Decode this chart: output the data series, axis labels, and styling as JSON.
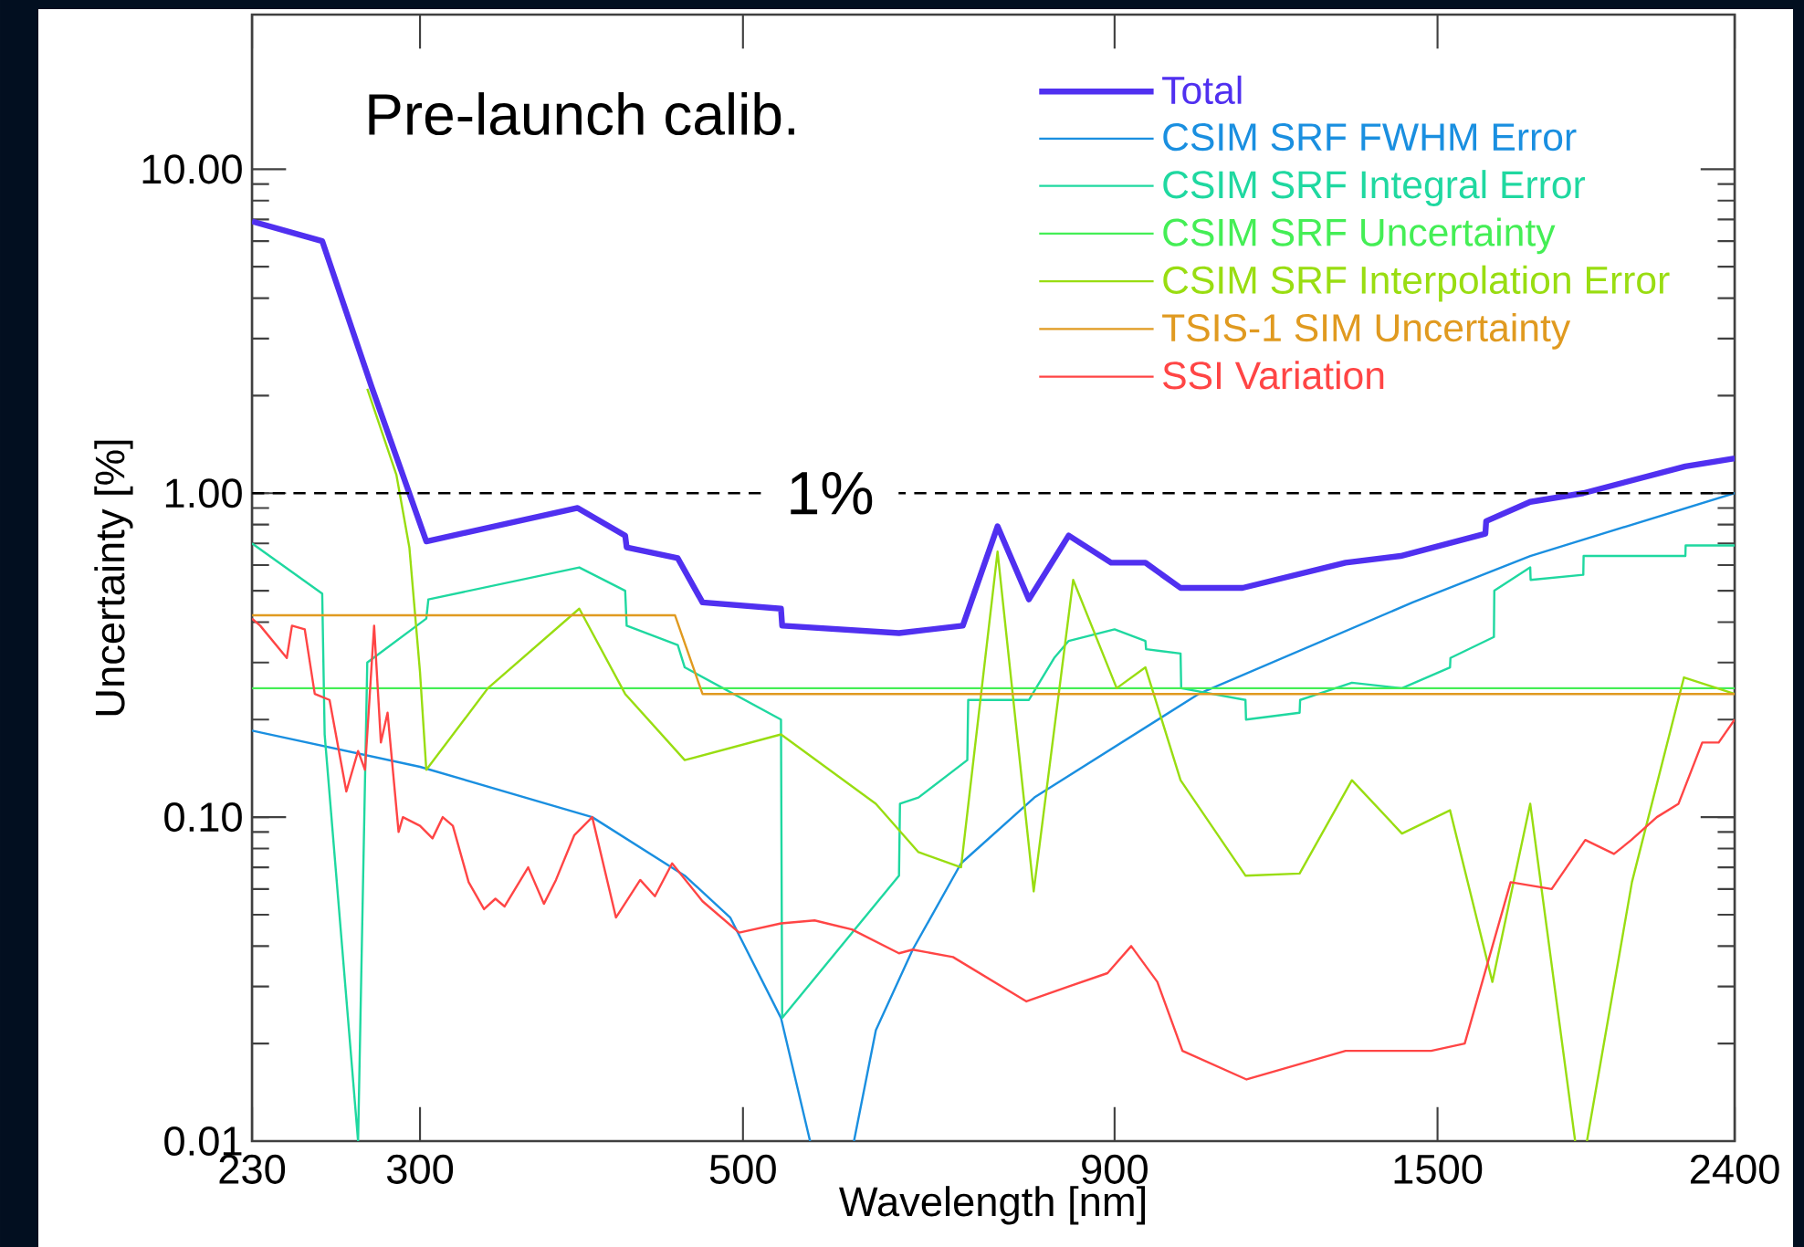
{
  "chart_data": {
    "type": "line",
    "xlabel": "Wavelength [nm]",
    "ylabel": "Uncertainty [%]",
    "annotations": [
      "Pre-launch calib."
    ],
    "log": "xy",
    "grid": false,
    "legend": "top right",
    "marker": "none",
    "xlim": [
      230,
      2400
    ],
    "ylim": [
      0.01,
      30
    ],
    "xticks": [
      230,
      300,
      500,
      900,
      1500,
      2400
    ],
    "yticks": [
      {
        "value": 0.01,
        "label": "0.01"
      },
      {
        "value": 0.1,
        "label": "0.10"
      },
      {
        "value": 1,
        "label": "1.00"
      },
      {
        "value": 10,
        "label": "10.00"
      }
    ],
    "ref_lines": [
      {
        "axis": "y",
        "value": 1,
        "label": "1%",
        "line_style": "dashed",
        "color": "#000000"
      }
    ],
    "series": [
      {
        "name": "Total",
        "color": "#5030f0",
        "x": [
          230,
          257,
          278,
          303,
          385,
          415,
          416,
          451,
          469,
          531,
          532,
          640,
          708,
          748,
          786,
          837,
          895,
          945,
          999,
          1102,
          1297,
          1415,
          1618,
          1620,
          1737,
          1889,
          2220,
          2400
        ],
        "values": [
          6.9,
          6.0,
          2.12,
          0.71,
          0.9,
          0.74,
          0.68,
          0.63,
          0.46,
          0.44,
          0.39,
          0.37,
          0.39,
          0.79,
          0.47,
          0.74,
          0.61,
          0.61,
          0.51,
          0.51,
          0.61,
          0.64,
          0.75,
          0.82,
          0.94,
          1.0,
          1.21,
          1.28
        ]
      },
      {
        "name": "CSIM SRF FWHM Error",
        "color": "#1a8fe0",
        "x": [
          230,
          300,
          394,
          456,
          490,
          531,
          556,
          576,
          596,
          617,
          654,
          706,
          793,
          1028,
          1442,
          1737,
          2400
        ],
        "values": [
          0.185,
          0.143,
          0.1,
          0.066,
          0.049,
          0.024,
          0.01,
          null,
          0.01,
          0.022,
          0.039,
          0.072,
          0.115,
          0.24,
          0.46,
          0.64,
          1.0
        ]
      },
      {
        "name": "CSIM SRF Integral Error",
        "color": "#1fd8a0",
        "x": [
          230,
          257,
          258,
          272,
          276,
          303,
          304,
          386,
          415,
          416,
          451,
          456,
          531,
          532,
          640,
          641,
          660,
          713,
          714,
          786,
          818,
          837,
          900,
          945,
          946,
          999,
          1000,
          1107,
          1108,
          1206,
          1207,
          1310,
          1418,
          1530,
          1531,
          1640,
          1641,
          1737,
          1738,
          1889,
          1890,
          2220,
          2221,
          2400
        ],
        "values": [
          0.7,
          0.49,
          0.18,
          0.01,
          0.3,
          0.41,
          0.47,
          0.59,
          0.5,
          0.39,
          0.34,
          0.29,
          0.2,
          0.024,
          0.066,
          0.11,
          0.115,
          0.15,
          0.23,
          0.23,
          0.31,
          0.35,
          0.38,
          0.35,
          0.33,
          0.32,
          0.25,
          0.23,
          0.2,
          0.21,
          0.23,
          0.26,
          0.25,
          0.29,
          0.31,
          0.36,
          0.5,
          0.59,
          0.54,
          0.56,
          0.64,
          0.64,
          0.69,
          0.69
        ]
      },
      {
        "name": "CSIM SRF Uncertainty",
        "color": "#44ee55",
        "x": [
          230,
          2400
        ],
        "values": [
          0.25,
          0.25
        ]
      },
      {
        "name": "CSIM SRF Interpolation Error",
        "color": "#99dd11",
        "x": [
          276,
          289,
          295,
          300,
          303,
          334,
          386,
          415,
          456,
          531,
          617,
          660,
          706,
          748,
          792,
          843,
          903,
          945,
          999,
          1107,
          1206,
          1310,
          1418,
          1530,
          1636,
          1737,
          1865,
          1882,
          1900,
          2040,
          2215,
          2400
        ],
        "values": [
          2.1,
          1.14,
          0.68,
          0.28,
          0.14,
          0.25,
          0.44,
          0.24,
          0.15,
          0.18,
          0.11,
          0.078,
          0.07,
          0.66,
          0.059,
          0.54,
          0.25,
          0.29,
          0.13,
          0.066,
          0.067,
          0.13,
          0.089,
          0.105,
          0.031,
          0.11,
          0.01,
          null,
          0.01,
          0.063,
          0.27,
          0.24
        ]
      },
      {
        "name": "TSIS-1 SIM Uncertainty",
        "color": "#e09a20",
        "x": [
          230,
          449,
          469,
          2400
        ],
        "values": [
          0.42,
          0.42,
          0.24,
          0.24
        ]
      },
      {
        "name": "SSI Variation",
        "color": "#ff4545",
        "x": [
          230,
          233,
          243,
          245,
          250,
          254,
          260,
          267,
          272,
          275,
          279,
          282,
          285,
          290,
          292,
          300,
          306,
          311,
          316,
          324,
          332,
          338,
          343,
          356,
          365,
          372,
          383,
          394,
          409,
          425,
          435,
          447,
          469,
          497,
          531,
          560,
          594,
          640,
          654,
          697,
          783,
          837,
          890,
          924,
          963,
          1002,
          1109,
          1297,
          1485,
          1566,
          1684,
          1797,
          1895,
          1983,
          2038,
          2122,
          2196,
          2280,
          2340,
          2400
        ],
        "values": [
          0.41,
          0.39,
          0.31,
          0.39,
          0.38,
          0.24,
          0.23,
          0.12,
          0.16,
          0.14,
          0.39,
          0.17,
          0.21,
          0.09,
          0.1,
          0.094,
          0.086,
          0.1,
          0.094,
          0.063,
          0.052,
          0.056,
          0.053,
          0.07,
          0.054,
          0.064,
          0.088,
          0.1,
          0.049,
          0.064,
          0.057,
          0.072,
          0.055,
          0.044,
          0.047,
          0.048,
          0.045,
          0.038,
          0.039,
          0.037,
          0.027,
          0.03,
          0.033,
          0.04,
          0.031,
          0.019,
          0.0155,
          0.019,
          0.019,
          0.02,
          0.063,
          0.06,
          0.085,
          0.077,
          0.085,
          0.1,
          0.11,
          0.17,
          0.17,
          0.2
        ]
      }
    ]
  }
}
